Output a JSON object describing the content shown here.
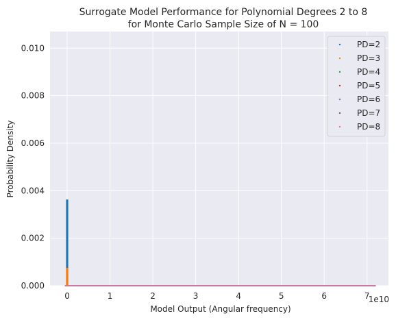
{
  "chart_data": {
    "type": "scatter",
    "title": [
      "Surrogate Model Performance for Polynomial Degrees 2 to 8",
      "for Monte Carlo Sample Size of N = 100"
    ],
    "xlabel": "Model Output (Angular frequency)",
    "ylabel": "Probability Density",
    "x_offset_label": "1e10",
    "xlim": [
      -0.4,
      7.5
    ],
    "ylim": [
      0,
      0.0107
    ],
    "x_ticks": [
      0,
      1,
      2,
      3,
      4,
      5,
      6,
      7
    ],
    "x_tick_labels": [
      "0",
      "1",
      "2",
      "3",
      "4",
      "5",
      "6",
      "7"
    ],
    "y_ticks": [
      0,
      0.002,
      0.004,
      0.006,
      0.008,
      0.01
    ],
    "y_tick_labels": [
      "0.000",
      "0.002",
      "0.004",
      "0.006",
      "0.008",
      "0.010"
    ],
    "grid": true,
    "legend_position": "top-right",
    "x_data_range": [
      -0.05,
      7.2
    ],
    "series": [
      {
        "name": "PD=2",
        "color": "#1f77b4",
        "spike_x": 0.0,
        "spike_y": 0.00363
      },
      {
        "name": "PD=3",
        "color": "#ff7f0e",
        "spike_x": 0.0,
        "spike_y": 0.00075
      },
      {
        "name": "PD=4",
        "color": "#2ca02c",
        "spike_x": 0.0,
        "spike_y": 0.0
      },
      {
        "name": "PD=5",
        "color": "#d62728",
        "spike_x": 0.0,
        "spike_y": 0.0
      },
      {
        "name": "PD=6",
        "color": "#9467bd",
        "spike_x": 0.0,
        "spike_y": 0.0
      },
      {
        "name": "PD=7",
        "color": "#8c564b",
        "spike_x": 0.0,
        "spike_y": 0.0
      },
      {
        "name": "PD=8",
        "color": "#e377c2",
        "spike_x": 0.0,
        "spike_y": 0.0
      }
    ]
  }
}
